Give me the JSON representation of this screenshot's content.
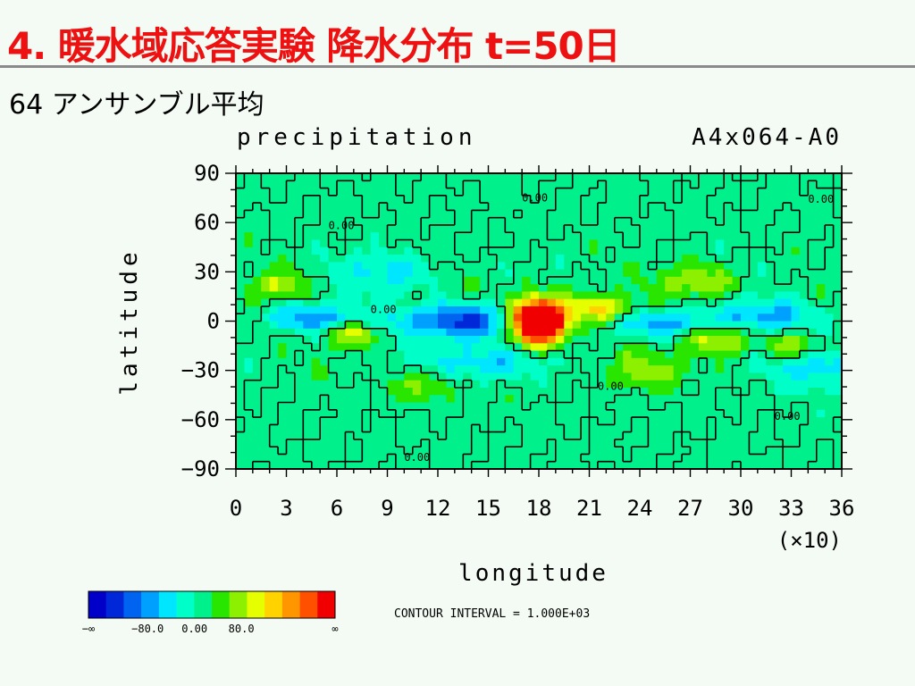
{
  "slide": {
    "title": "4. 暖水域応答実験 降水分布 t=50日",
    "subtitle": "64 アンサンブル平均"
  },
  "colors": {
    "title": "#ee1111",
    "palette": [
      "#0000c8",
      "#0028d8",
      "#0064f0",
      "#00a0ff",
      "#00e6ff",
      "#00ffc8",
      "#00f08c",
      "#28e600",
      "#8cf000",
      "#e6ff00",
      "#ffd200",
      "#ff9600",
      "#ff5000",
      "#f00000"
    ]
  },
  "chart_data": {
    "type": "heatmap",
    "title": "precipitation",
    "experiment": "A4x064-A0",
    "xlabel": "longitude",
    "ylabel": "latitude",
    "x_multiplier": "(×10)",
    "xlim": [
      0,
      36
    ],
    "ylim": [
      -90,
      90
    ],
    "x_ticks": [
      "0",
      "3",
      "6",
      "9",
      "12",
      "15",
      "18",
      "21",
      "24",
      "27",
      "30",
      "33",
      "36"
    ],
    "y_ticks": [
      "90",
      "60",
      "30",
      "0",
      "−30",
      "−60",
      "−90"
    ],
    "colorbar_labels": [
      "−∞",
      "−80.0",
      "0.00",
      "80.0",
      "∞"
    ],
    "contour_note": "CONTOUR INTERVAL = 1.000E+03",
    "contour_labels": [
      {
        "text": "0.00",
        "x": 17,
        "y": 73
      },
      {
        "text": "0.00",
        "x": 34,
        "y": 72
      },
      {
        "text": "0.00",
        "x": 5.5,
        "y": 56
      },
      {
        "text": "0.00",
        "x": 8,
        "y": 5
      },
      {
        "text": "0.00",
        "x": 21.5,
        "y": -42
      },
      {
        "text": "0.00",
        "x": 32,
        "y": -60
      },
      {
        "text": "0.00",
        "x": 10,
        "y": -85
      }
    ],
    "anomalies": [
      {
        "x": 18.0,
        "y": 0,
        "amp": 260,
        "sx": 1.1,
        "sy": 9
      },
      {
        "x": 13.5,
        "y": 0,
        "amp": -90,
        "sx": 2.4,
        "sy": 7
      },
      {
        "x": 4.5,
        "y": 2,
        "amp": -60,
        "sx": 1.8,
        "sy": 6
      },
      {
        "x": 25.5,
        "y": -2,
        "amp": -55,
        "sx": 2.0,
        "sy": 6
      },
      {
        "x": 31.5,
        "y": 3,
        "amp": -50,
        "sx": 2.2,
        "sy": 7
      },
      {
        "x": 15.0,
        "y": -25,
        "amp": -45,
        "sx": 2.5,
        "sy": 8
      },
      {
        "x": 34.5,
        "y": -28,
        "amp": -45,
        "sx": 2.0,
        "sy": 8
      },
      {
        "x": 9.0,
        "y": 30,
        "amp": -40,
        "sx": 2.0,
        "sy": 8
      },
      {
        "x": 21.5,
        "y": 8,
        "amp": 70,
        "sx": 1.3,
        "sy": 6
      },
      {
        "x": 7.0,
        "y": -8,
        "amp": 60,
        "sx": 1.0,
        "sy": 5
      },
      {
        "x": 28.5,
        "y": -10,
        "amp": 55,
        "sx": 1.4,
        "sy": 6
      },
      {
        "x": 2.5,
        "y": 22,
        "amp": 45,
        "sx": 1.2,
        "sy": 6
      },
      {
        "x": 24.0,
        "y": -30,
        "amp": 45,
        "sx": 1.6,
        "sy": 8
      },
      {
        "x": 27.5,
        "y": 25,
        "amp": 50,
        "sx": 1.5,
        "sy": 7
      },
      {
        "x": 33.0,
        "y": -15,
        "amp": 50,
        "sx": 1.2,
        "sy": 6
      },
      {
        "x": 11.0,
        "y": -40,
        "amp": 40,
        "sx": 1.4,
        "sy": 7
      }
    ]
  }
}
